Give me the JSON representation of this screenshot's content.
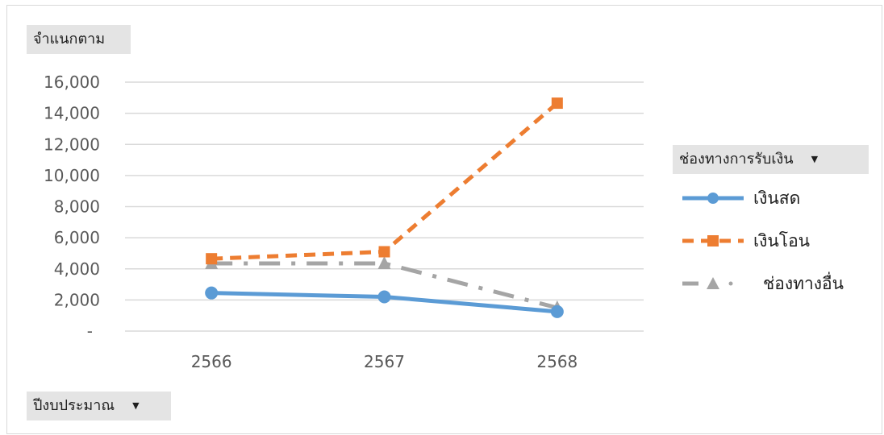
{
  "fields": {
    "value_field": "จำแนกตาม",
    "category_field": "ปีงบประมาณ",
    "series_field": "ช่องทางการรับเงิน",
    "dropdown_icon": "triangle-down"
  },
  "colors": {
    "cash": "#5b9bd5",
    "transfer": "#ed7d31",
    "other": "#a5a5a5",
    "grid": "#d9d9d9",
    "field_bg": "#e4e4e4"
  },
  "chart_data": {
    "type": "line",
    "categories": [
      "2566",
      "2567",
      "2568"
    ],
    "series": [
      {
        "name": "เงินสด",
        "values": [
          2450,
          2200,
          1250
        ],
        "marker": "circle",
        "style": "solid",
        "color": "#5b9bd5"
      },
      {
        "name": "เงินโอน",
        "values": [
          4650,
          5100,
          14650
        ],
        "marker": "square",
        "style": "dashed",
        "color": "#ed7d31"
      },
      {
        "name": "ช่องทางอื่น",
        "values": [
          4350,
          4350,
          1500
        ],
        "marker": "triangle",
        "style": "dash-dot",
        "color": "#a5a5a5"
      }
    ],
    "yticks": [
      "-",
      "2,000",
      "4,000",
      "6,000",
      "8,000",
      "10,000",
      "12,000",
      "14,000",
      "16,000"
    ],
    "ylim": [
      0,
      16000
    ],
    "grid": true,
    "legend_position": "right"
  }
}
